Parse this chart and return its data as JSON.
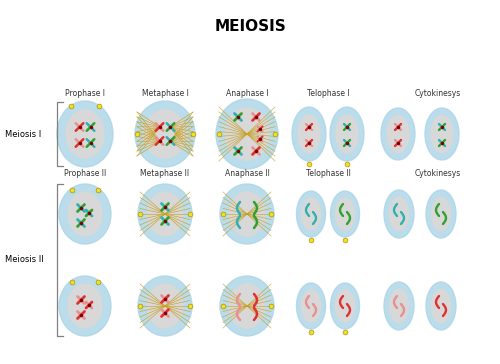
{
  "title": "MEIOSIS",
  "title_fontsize": 11,
  "bg_color": "#ffffff",
  "row1_label": "Meiosis I",
  "row2_label": "Meiosis II",
  "row1_phases": [
    "Prophase I",
    "Metaphase I",
    "Anaphase I",
    "Telophase I",
    "Cytokinesys"
  ],
  "row2_phases": [
    "Prophase II",
    "Metaphase II",
    "Anaphase II",
    "Telophase II",
    "Cytokinesys"
  ],
  "cell_outer_color": "#aed6e8",
  "cell_nucleus_color": "#d8d8d8",
  "chr_red": "#e03030",
  "chr_pink": "#e89090",
  "chr_green": "#30a030",
  "chr_teal": "#30b0b0",
  "spindle_color": "#c8a020",
  "centrosome_color": "#f0e020",
  "label_fontsize": 5.5,
  "row_label_fontsize": 6.0
}
